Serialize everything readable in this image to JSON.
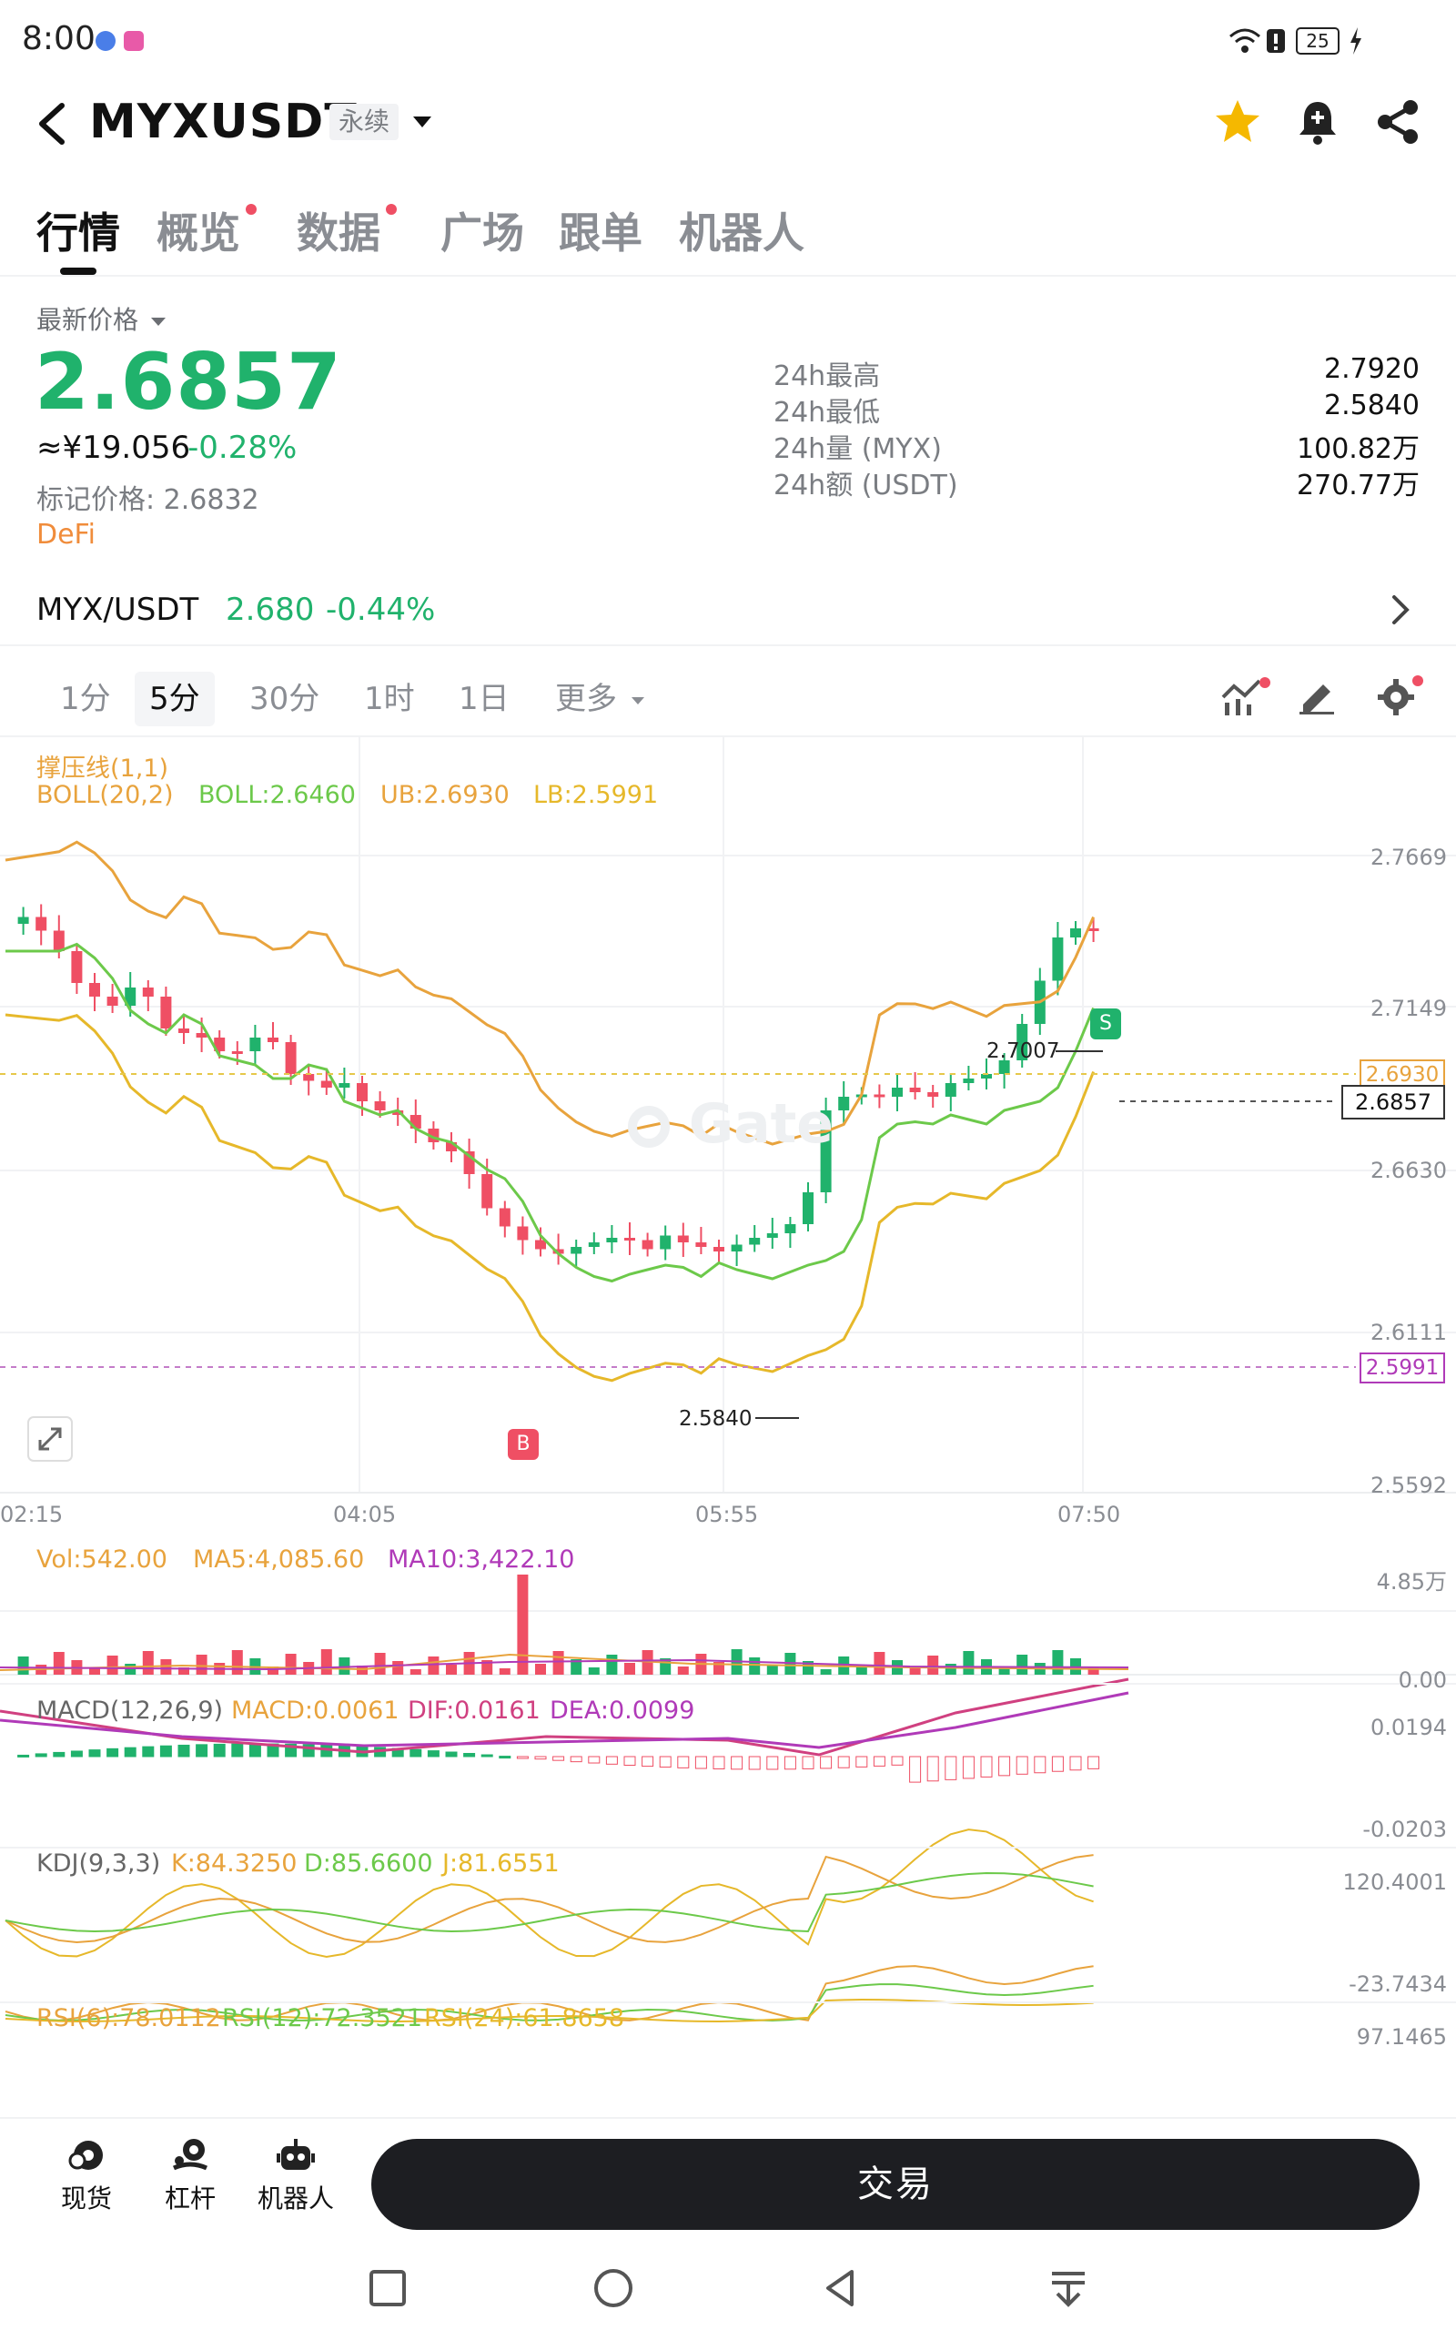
{
  "status_bar": {
    "time": "8:00",
    "battery": "25"
  },
  "header": {
    "title": "MYXUSDT",
    "badge": "永续"
  },
  "tabs": [
    {
      "label": "行情",
      "active": true,
      "dot": false
    },
    {
      "label": "概览",
      "active": false,
      "dot": true
    },
    {
      "label": "数据",
      "active": false,
      "dot": true
    },
    {
      "label": "广场",
      "active": false,
      "dot": false
    },
    {
      "label": "跟单",
      "active": false,
      "dot": false
    },
    {
      "label": "机器人",
      "active": false,
      "dot": false
    }
  ],
  "price": {
    "latest_label": "最新价格",
    "last": "2.6857",
    "cny": "≈¥19.056",
    "change_pct": "-0.28%",
    "mark_price": "标记价格: 2.6832",
    "tag": "DeFi"
  },
  "stats": [
    {
      "label": "24h最高",
      "value": "2.7920"
    },
    {
      "label": "24h最低",
      "value": "2.5840"
    },
    {
      "label": "24h量 (MYX)",
      "value": "100.82万"
    },
    {
      "label": "24h额 (USDT)",
      "value": "270.77万"
    }
  ],
  "spot": {
    "pair": "MYX/USDT",
    "price": "2.680",
    "change": "-0.44%"
  },
  "timeframes": [
    {
      "label": "1分",
      "active": false
    },
    {
      "label": "5分",
      "active": true
    },
    {
      "label": "30分",
      "active": false
    },
    {
      "label": "1时",
      "active": false
    },
    {
      "label": "1日",
      "active": false
    },
    {
      "label": "更多",
      "active": false
    }
  ],
  "indicators": {
    "sr": "撑压线(1,1)",
    "boll": "BOLL(20,2)",
    "boll_mid": "BOLL:2.6460",
    "ub": "UB:2.6930",
    "lb": "LB:2.5991",
    "vol": "Vol:542.00",
    "ma5": "MA5:4,085.60",
    "ma10": "MA10:3,422.10",
    "macd_name": "MACD(12,26,9)",
    "macd": "MACD:0.0061",
    "dif": "DIF:0.0161",
    "dea": "DEA:0.0099",
    "kdj_name": "KDJ(9,3,3)",
    "k": "K:84.3250",
    "d": "D:85.6600",
    "j": "J:81.6551",
    "rsi6": "RSI(6):78.0112",
    "rsi12": "RSI(12):72.3521",
    "rsi24": "RSI(24):61.8658"
  },
  "axes": {
    "price": [
      "2.7669",
      "2.7149",
      "2.6630",
      "2.6111",
      "2.5592"
    ],
    "ub_tag": "2.6930",
    "last_tag": "2.6857",
    "lb_tag": "2.5991",
    "time": [
      "02:15",
      "04:05",
      "05:55",
      "07:50"
    ],
    "vol": [
      "4.85万",
      "0.00"
    ],
    "macd": [
      "0.0194",
      "-0.0203"
    ],
    "kdj": [
      "120.4001",
      "-23.7434"
    ],
    "rsi": [
      "97.1465"
    ]
  },
  "chart_annotations": {
    "high": "2.7007",
    "low": "2.5840",
    "sell_marker": "S",
    "buy_marker": "B",
    "watermark": "Gate"
  },
  "bottom": {
    "items": [
      {
        "label": "现货",
        "icon": "spot-coin-icon"
      },
      {
        "label": "杠杆",
        "icon": "leverage-icon"
      },
      {
        "label": "机器人",
        "icon": "robot-icon"
      }
    ],
    "trade": "交易"
  },
  "colors": {
    "up": "#20b26c",
    "down": "#ef4f64",
    "ub": "#e8a33d",
    "mid": "#6cc94a",
    "lb": "#e6b82a",
    "macd_purple": "#b03ab8"
  }
}
